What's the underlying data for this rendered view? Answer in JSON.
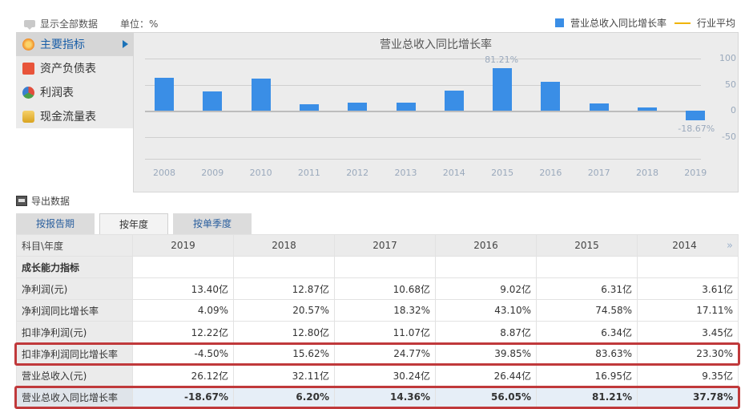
{
  "topbar": {
    "show_all_label": "显示全部数据",
    "unit_label": "单位：%"
  },
  "legend": {
    "series_label": "营业总收入同比增长率",
    "avg_label": "行业平均",
    "series_color": "#3a8ee6",
    "avg_color": "#f0b400"
  },
  "sidebar": {
    "items": [
      {
        "label": "主要指标",
        "icon": "flower-icon",
        "active": true
      },
      {
        "label": "资产负债表",
        "icon": "document-icon"
      },
      {
        "label": "利润表",
        "icon": "pie-icon"
      },
      {
        "label": "现金流量表",
        "icon": "coins-icon"
      }
    ]
  },
  "chart_data": {
    "type": "bar",
    "title": "营业总收入同比增长率",
    "categories": [
      "2008",
      "2009",
      "2010",
      "2011",
      "2012",
      "2013",
      "2014",
      "2015",
      "2016",
      "2017",
      "2018",
      "2019"
    ],
    "series": [
      {
        "name": "营业总收入同比增长率",
        "values": [
          63,
          37,
          62,
          13,
          16,
          15,
          37.78,
          81.21,
          56.05,
          14.36,
          6.2,
          -18.67
        ]
      }
    ],
    "yticks": [
      100,
      50,
      0,
      -50
    ],
    "ylim": [
      -75,
      100
    ],
    "annotations": [
      {
        "category": "2015",
        "text": "81.21%"
      },
      {
        "category": "2019",
        "text": "-18.67%"
      }
    ],
    "xlabel": "",
    "ylabel": "",
    "legend_position": "top-right",
    "grid": true
  },
  "export": {
    "label": "导出数据"
  },
  "tabs": [
    {
      "label": "按报告期",
      "active": false
    },
    {
      "label": "按年度",
      "active": true
    },
    {
      "label": "按单季度",
      "active": false
    }
  ],
  "table": {
    "header": {
      "label": "科目\\年度",
      "years": [
        "2019",
        "2018",
        "2017",
        "2016",
        "2015",
        "2014"
      ],
      "more_icon": "»"
    },
    "section": "成长能力指标",
    "rows": [
      {
        "label": "净利润(元)",
        "values": [
          "13.40亿",
          "12.87亿",
          "10.68亿",
          "9.02亿",
          "6.31亿",
          "3.61亿"
        ]
      },
      {
        "label": "净利润同比增长率",
        "values": [
          "4.09%",
          "20.57%",
          "18.32%",
          "43.10%",
          "74.58%",
          "17.11%"
        ]
      },
      {
        "label": "扣非净利润(元)",
        "values": [
          "12.22亿",
          "12.80亿",
          "11.07亿",
          "8.87亿",
          "6.34亿",
          "3.45亿"
        ]
      },
      {
        "label": "扣非净利润同比增长率",
        "values": [
          "-4.50%",
          "15.62%",
          "24.77%",
          "39.85%",
          "83.63%",
          "23.30%"
        ]
      },
      {
        "label": "营业总收入(元)",
        "values": [
          "26.12亿",
          "32.11亿",
          "30.24亿",
          "26.44亿",
          "16.95亿",
          "9.35亿"
        ]
      },
      {
        "label": "营业总收入同比增长率",
        "values": [
          "-18.67%",
          "6.20%",
          "14.36%",
          "56.05%",
          "81.21%",
          "37.78%"
        ]
      }
    ]
  }
}
